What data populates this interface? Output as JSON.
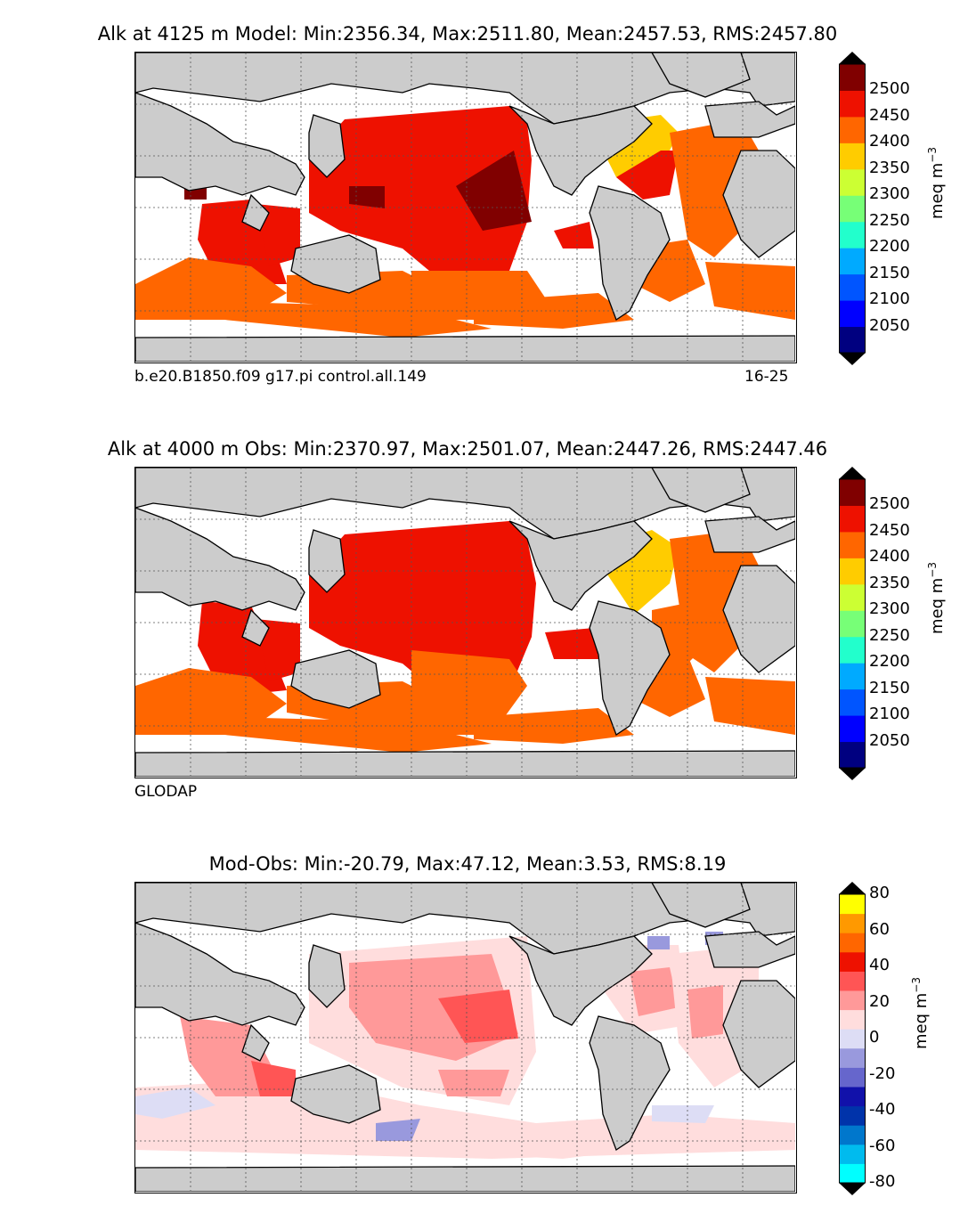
{
  "panels": [
    {
      "id": "model",
      "title": "Alk at 4125 m Model: Min:2356.34, Max:2511.80, Mean:2457.53, RMS:2457.80",
      "footer_left": "b.e20.B1850.f09 g17.pi control.all.149",
      "footer_right": "16-25",
      "colorbar_labels": [
        "2500",
        "2450",
        "2400",
        "2350",
        "2300",
        "2250",
        "2200",
        "2150",
        "2100",
        "2050"
      ],
      "units": "meq m",
      "units_exp": "−3"
    },
    {
      "id": "obs",
      "title": "Alk at 4000 m Obs: Min:2370.97, Max:2501.07, Mean:2447.26, RMS:2447.46",
      "footer_left": "GLODAP",
      "footer_right": "",
      "colorbar_labels": [
        "2500",
        "2450",
        "2400",
        "2350",
        "2300",
        "2250",
        "2200",
        "2150",
        "2100",
        "2050"
      ],
      "units": "meq m",
      "units_exp": "−3"
    },
    {
      "id": "diff",
      "title": "Mod-Obs: Min:-20.79, Max:47.12, Mean:3.53, RMS:8.19",
      "footer_left": "",
      "footer_right": "",
      "colorbar_labels": [
        "80",
        "60",
        "40",
        "20",
        "0",
        "-20",
        "-40",
        "-60",
        "-80"
      ],
      "units": "meq m",
      "units_exp": "−3"
    }
  ],
  "colors": {
    "land": "#cccccc",
    "absolute_scale": [
      "#000080",
      "#0000ff",
      "#0055ff",
      "#00aaff",
      "#22ffcc",
      "#77ff77",
      "#ccff33",
      "#ffcc00",
      "#ff6600",
      "#ee1100",
      "#800000"
    ],
    "diff_scale": [
      "#00ffff",
      "#00bbee",
      "#0077cc",
      "#0033aa",
      "#1111aa",
      "#6666cc",
      "#9999dd",
      "#ddddf5",
      "#ffdddd",
      "#ff9999",
      "#ff5555",
      "#ee1100",
      "#ff6600",
      "#ff9900",
      "#ffff00"
    ]
  },
  "chart_data": [
    {
      "type": "heatmap",
      "title": "Alk at 4125 m Model: Min:2356.34, Max:2511.80, Mean:2457.53, RMS:2457.80",
      "variable": "Alk",
      "depth_m": 4125,
      "min": 2356.34,
      "max": 2511.8,
      "mean": 2457.53,
      "rms": 2457.8,
      "colorbar": {
        "levels": [
          2050,
          2100,
          2150,
          2200,
          2250,
          2300,
          2350,
          2400,
          2450,
          2500
        ],
        "extend": "both",
        "units": "meq m^-3"
      }
    },
    {
      "type": "heatmap",
      "title": "Alk at 4000 m Obs: Min:2370.97, Max:2501.07, Mean:2447.26, RMS:2447.46",
      "variable": "Alk",
      "depth_m": 4000,
      "min": 2370.97,
      "max": 2501.07,
      "mean": 2447.26,
      "rms": 2447.46,
      "colorbar": {
        "levels": [
          2050,
          2100,
          2150,
          2200,
          2250,
          2300,
          2350,
          2400,
          2450,
          2500
        ],
        "extend": "both",
        "units": "meq m^-3"
      }
    },
    {
      "type": "heatmap",
      "title": "Mod-Obs: Min:-20.79, Max:47.12, Mean:3.53, RMS:8.19",
      "min": -20.79,
      "max": 47.12,
      "mean": 3.53,
      "rms": 8.19,
      "colorbar": {
        "levels": [
          -80,
          -60,
          -40,
          -20,
          0,
          20,
          40,
          60,
          80
        ],
        "extend": "both",
        "units": "meq m^-3"
      }
    }
  ]
}
